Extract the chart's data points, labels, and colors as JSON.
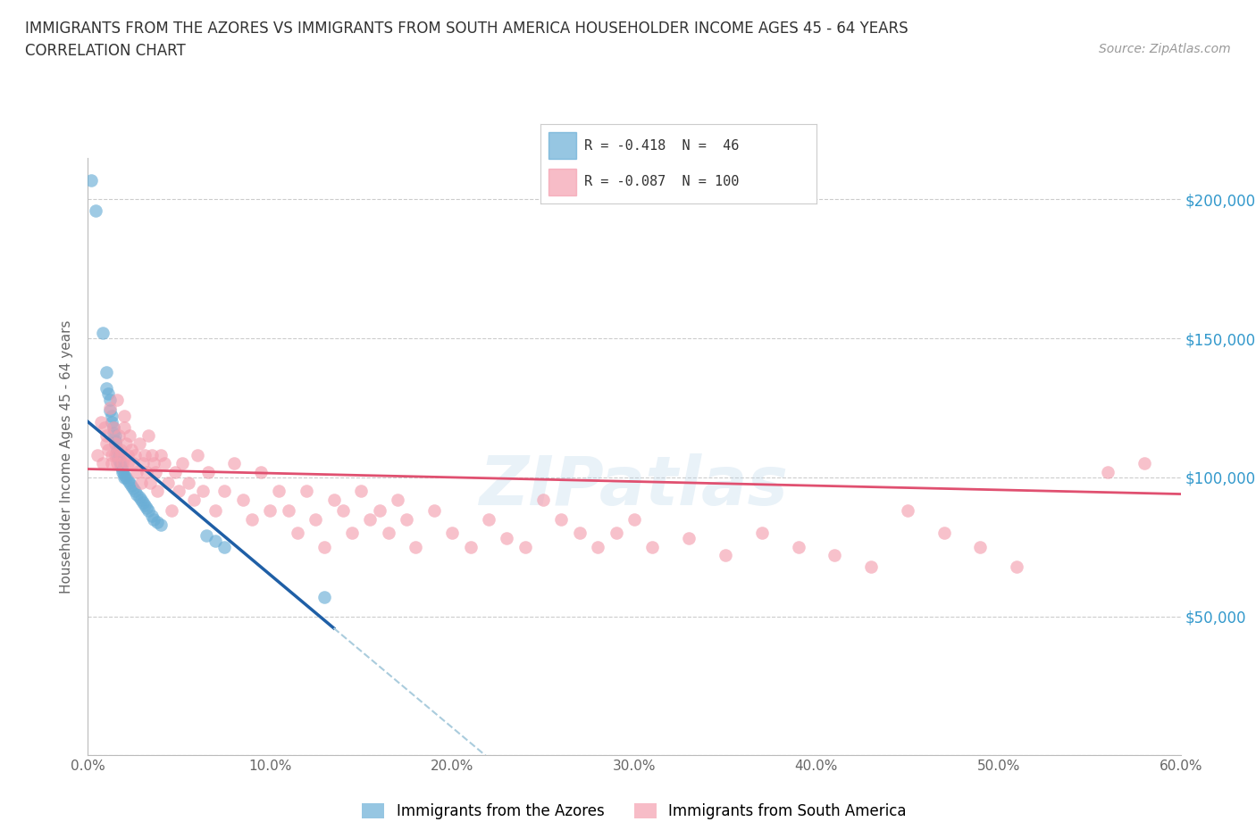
{
  "title_line1": "IMMIGRANTS FROM THE AZORES VS IMMIGRANTS FROM SOUTH AMERICA HOUSEHOLDER INCOME AGES 45 - 64 YEARS",
  "title_line2": "CORRELATION CHART",
  "source_text": "Source: ZipAtlas.com",
  "ylabel": "Householder Income Ages 45 - 64 years",
  "xlim": [
    0,
    0.6
  ],
  "ylim": [
    0,
    215000
  ],
  "yticks": [
    0,
    50000,
    100000,
    150000,
    200000
  ],
  "xticks": [
    0.0,
    0.1,
    0.2,
    0.3,
    0.4,
    0.5,
    0.6
  ],
  "xtick_labels": [
    "0.0%",
    "10.0%",
    "20.0%",
    "30.0%",
    "40.0%",
    "50.0%",
    "60.0%"
  ],
  "azores_R": -0.418,
  "azores_N": 46,
  "sa_R": -0.087,
  "sa_N": 100,
  "azores_color": "#6aaed6",
  "sa_color": "#f4a0b0",
  "azores_line_color": "#1f5fa6",
  "sa_line_color": "#e05070",
  "legend_azores": "Immigrants from the Azores",
  "legend_sa": "Immigrants from South America",
  "azores_x": [
    0.002,
    0.004,
    0.008,
    0.01,
    0.01,
    0.011,
    0.012,
    0.012,
    0.013,
    0.013,
    0.014,
    0.014,
    0.015,
    0.015,
    0.015,
    0.016,
    0.016,
    0.017,
    0.017,
    0.018,
    0.018,
    0.019,
    0.019,
    0.02,
    0.02,
    0.021,
    0.022,
    0.023,
    0.024,
    0.025,
    0.026,
    0.027,
    0.028,
    0.029,
    0.03,
    0.031,
    0.032,
    0.033,
    0.035,
    0.036,
    0.038,
    0.04,
    0.065,
    0.07,
    0.075,
    0.13
  ],
  "azores_y": [
    207000,
    196000,
    152000,
    138000,
    132000,
    130000,
    128000,
    124000,
    122000,
    120000,
    118000,
    116000,
    115000,
    113000,
    112000,
    110000,
    108000,
    107000,
    106000,
    105000,
    104000,
    103000,
    102000,
    101000,
    100000,
    100000,
    99000,
    98000,
    97000,
    96000,
    95000,
    94000,
    93000,
    92000,
    91000,
    90000,
    89000,
    88000,
    86000,
    85000,
    84000,
    83000,
    79000,
    77000,
    75000,
    57000
  ],
  "sa_x": [
    0.005,
    0.007,
    0.008,
    0.009,
    0.01,
    0.01,
    0.011,
    0.012,
    0.013,
    0.013,
    0.014,
    0.015,
    0.015,
    0.016,
    0.016,
    0.017,
    0.018,
    0.018,
    0.019,
    0.02,
    0.02,
    0.021,
    0.022,
    0.022,
    0.023,
    0.024,
    0.025,
    0.026,
    0.027,
    0.028,
    0.029,
    0.03,
    0.031,
    0.032,
    0.033,
    0.034,
    0.035,
    0.036,
    0.037,
    0.038,
    0.04,
    0.042,
    0.044,
    0.046,
    0.048,
    0.05,
    0.052,
    0.055,
    0.058,
    0.06,
    0.063,
    0.066,
    0.07,
    0.075,
    0.08,
    0.085,
    0.09,
    0.095,
    0.1,
    0.105,
    0.11,
    0.115,
    0.12,
    0.125,
    0.13,
    0.135,
    0.14,
    0.145,
    0.15,
    0.155,
    0.16,
    0.165,
    0.17,
    0.175,
    0.18,
    0.19,
    0.2,
    0.21,
    0.22,
    0.23,
    0.24,
    0.25,
    0.26,
    0.27,
    0.28,
    0.29,
    0.3,
    0.31,
    0.33,
    0.35,
    0.37,
    0.39,
    0.41,
    0.43,
    0.45,
    0.47,
    0.49,
    0.51,
    0.56,
    0.58
  ],
  "sa_y": [
    108000,
    120000,
    105000,
    118000,
    115000,
    112000,
    110000,
    125000,
    108000,
    105000,
    118000,
    112000,
    108000,
    128000,
    105000,
    115000,
    110000,
    108000,
    105000,
    122000,
    118000,
    112000,
    108000,
    105000,
    115000,
    110000,
    105000,
    108000,
    102000,
    112000,
    98000,
    105000,
    108000,
    102000,
    115000,
    98000,
    108000,
    105000,
    102000,
    95000,
    108000,
    105000,
    98000,
    88000,
    102000,
    95000,
    105000,
    98000,
    92000,
    108000,
    95000,
    102000,
    88000,
    95000,
    105000,
    92000,
    85000,
    102000,
    88000,
    95000,
    88000,
    80000,
    95000,
    85000,
    75000,
    92000,
    88000,
    80000,
    95000,
    85000,
    88000,
    80000,
    92000,
    85000,
    75000,
    88000,
    80000,
    75000,
    85000,
    78000,
    75000,
    92000,
    85000,
    80000,
    75000,
    80000,
    85000,
    75000,
    78000,
    72000,
    80000,
    75000,
    72000,
    68000,
    88000,
    80000,
    75000,
    68000,
    102000,
    105000
  ]
}
